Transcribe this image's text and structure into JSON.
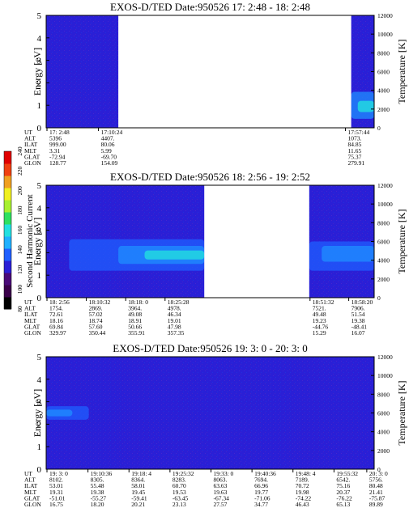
{
  "colors": {
    "background": "#ffffff",
    "panel_fill": "#2a1fd6",
    "spectrogram_bright": "#1f8fff",
    "spectrogram_core": "#22d8e0"
  },
  "colorbar": {
    "label": "Second Harmonic Current",
    "ticks": [
      "80",
      "100",
      "120",
      "140",
      "160",
      "180",
      "200",
      "220",
      "240"
    ],
    "colors": [
      "#000000",
      "#3a004a",
      "#4a0a78",
      "#2a1fd6",
      "#1f5fff",
      "#1fb0ff",
      "#22e0e0",
      "#2ee060",
      "#a8f030",
      "#f0f020",
      "#f0a020",
      "#f04010",
      "#e00000"
    ]
  },
  "chart_data": [
    {
      "type": "heatmap",
      "title": "EXOS-D/TED   Date:950526  17: 2:48 - 18: 2:48",
      "ylabel": "Energy [eV]",
      "y2label": "Temperature [K]",
      "ylim": [
        0,
        5
      ],
      "yticks": [
        "0",
        "1",
        "2",
        "3",
        "4",
        "5"
      ],
      "y2lim": [
        0,
        12000
      ],
      "y2ticks": [
        "0",
        "2000",
        "4000",
        "6000",
        "8000",
        "10000",
        "12000"
      ],
      "data_gaps": [
        [
          0.22,
          0.93
        ]
      ],
      "bright_features": [
        {
          "x0": 0.93,
          "x1": 1.0,
          "y0": 0.4,
          "y1": 1.6,
          "level": "high"
        },
        {
          "x0": 0.95,
          "x1": 1.0,
          "y0": 0.7,
          "y1": 1.2,
          "level": "peak"
        }
      ],
      "ephemeris": {
        "labels": [
          "UT",
          "ALT",
          "ILAT",
          "MLT",
          "GLAT",
          "GLON"
        ],
        "columns": [
          {
            "pos": 0.0,
            "values": [
              "17: 2:48",
              "5396",
              "999.00",
              "3.31",
              "-72.94",
              "128.77"
            ]
          },
          {
            "pos": 0.157,
            "values": [
              "17:10:24",
              "4407.",
              "80.06",
              "5.99",
              "-69.70",
              "154.09"
            ]
          },
          {
            "pos": 0.91,
            "values": [
              "17:57:44",
              "1073.",
              "84.85",
              "11.65",
              "75.37",
              "279.91"
            ]
          }
        ]
      }
    },
    {
      "type": "heatmap",
      "title": "EXOS-D/TED   Date:950526  18: 2:56 - 19: 2:52",
      "ylabel": "Energy [eV]",
      "y2label": "Temperature [K]",
      "ylim": [
        0,
        5
      ],
      "yticks": [
        "0",
        "1",
        "2",
        "3",
        "4",
        "5"
      ],
      "y2lim": [
        0,
        12000
      ],
      "y2ticks": [
        "0",
        "2000",
        "4000",
        "6000",
        "8000",
        "10000",
        "12000"
      ],
      "data_gaps": [
        [
          0.482,
          0.802
        ]
      ],
      "bright_features": [
        {
          "x0": 0.07,
          "x1": 0.482,
          "y0": 1.2,
          "y1": 2.6,
          "level": "mid"
        },
        {
          "x0": 0.22,
          "x1": 0.482,
          "y0": 1.5,
          "y1": 2.3,
          "level": "high"
        },
        {
          "x0": 0.3,
          "x1": 0.482,
          "y0": 1.7,
          "y1": 2.1,
          "level": "peak"
        },
        {
          "x0": 0.802,
          "x1": 1.0,
          "y0": 1.2,
          "y1": 2.5,
          "level": "mid"
        },
        {
          "x0": 0.84,
          "x1": 1.0,
          "y0": 1.6,
          "y1": 2.3,
          "level": "high"
        }
      ],
      "ephemeris": {
        "labels": [
          "UT",
          "ALT",
          "ILAT",
          "MLT",
          "GLAT",
          "GLON"
        ],
        "columns": [
          {
            "pos": 0.0,
            "values": [
              "18: 2:56",
              "1754.",
              "72.61",
              "18.16",
              "69.84",
              "329.97"
            ]
          },
          {
            "pos": 0.12,
            "values": [
              "18:10:32",
              "2869.",
              "57.02",
              "18.74",
              "57.60",
              "350.44"
            ]
          },
          {
            "pos": 0.24,
            "values": [
              "18:18: 0",
              "3964.",
              "49.08",
              "18.91",
              "50.66",
              "355.91"
            ]
          },
          {
            "pos": 0.36,
            "values": [
              "18:25:28",
              "4978.",
              "46.34",
              "19.01",
              "47.98",
              "357.35"
            ]
          },
          {
            "pos": 0.802,
            "values": [
              "18:51:32",
              "7521.",
              "49.48",
              "19.23",
              "-44.76",
              "15.29"
            ]
          },
          {
            "pos": 0.92,
            "values": [
              "18:58:20",
              "7906.",
              "51.54",
              "19.38",
              "-48.41",
              "16.07"
            ]
          }
        ]
      }
    },
    {
      "type": "heatmap",
      "title": "EXOS-D/TED   Date:950526  19: 3: 0 - 20: 3: 0",
      "ylabel": "Energy [eV]",
      "y2label": "Temperature [K]",
      "ylim": [
        0,
        5
      ],
      "yticks": [
        "0",
        "1",
        "2",
        "3",
        "4",
        "5"
      ],
      "y2lim": [
        0,
        12000
      ],
      "y2ticks": [
        "0",
        "2000",
        "4000",
        "6000",
        "8000",
        "10000",
        "12000"
      ],
      "data_gaps": [],
      "bright_features": [
        {
          "x0": 0.0,
          "x1": 0.13,
          "y0": 2.2,
          "y1": 2.8,
          "level": "mid"
        },
        {
          "x0": 0.0,
          "x1": 0.08,
          "y0": 2.35,
          "y1": 2.65,
          "level": "high"
        }
      ],
      "ephemeris": {
        "labels": [
          "UT",
          "ALT",
          "ILAT",
          "MLT",
          "GLAT",
          "GLON"
        ],
        "columns": [
          {
            "pos": 0.0,
            "values": [
              "19: 3: 0",
              "8102.",
              "53.01",
              "19.31",
              "-51.01",
              "16.75"
            ]
          },
          {
            "pos": 0.125,
            "values": [
              "19:10:36",
              "8305.",
              "55.48",
              "19.38",
              "-55.27",
              "18.20"
            ]
          },
          {
            "pos": 0.25,
            "values": [
              "19:18: 4",
              "8364.",
              "58.01",
              "19.45",
              "-59.41",
              "20.21"
            ]
          },
          {
            "pos": 0.375,
            "values": [
              "19:25:32",
              "8283.",
              "60.70",
              "19.53",
              "-63.45",
              "23.13"
            ]
          },
          {
            "pos": 0.5,
            "values": [
              "19:33: 0",
              "8063.",
              "63.63",
              "19.63",
              "-67.34",
              "27.57"
            ]
          },
          {
            "pos": 0.625,
            "values": [
              "19:40:36",
              "7694.",
              "66.96",
              "19.77",
              "-71.06",
              "34.77"
            ]
          },
          {
            "pos": 0.75,
            "values": [
              "19:48: 4",
              "7189.",
              "70.72",
              "19.98",
              "-74.22",
              "46.43"
            ]
          },
          {
            "pos": 0.875,
            "values": [
              "19:55:32",
              "6542.",
              "75.16",
              "20.37",
              "-76.22",
              "65.13"
            ]
          },
          {
            "pos": 0.975,
            "values": [
              "20: 3: 0",
              "5756.",
              "80.48",
              "21.41",
              "-75.87",
              "89.89"
            ]
          }
        ]
      }
    }
  ]
}
